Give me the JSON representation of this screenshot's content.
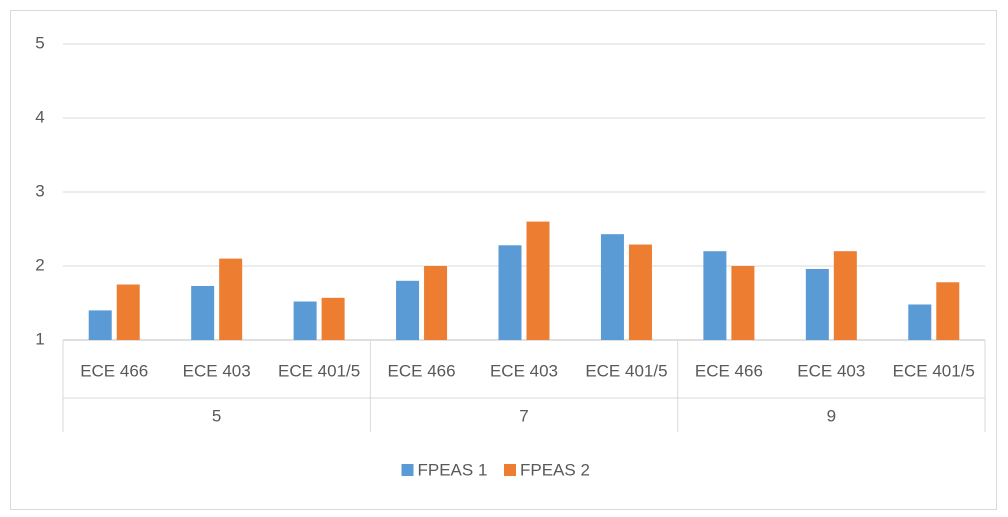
{
  "chart_data": {
    "type": "bar",
    "categories": [
      "ECE 466",
      "ECE 403",
      "ECE 401/5",
      "ECE 466",
      "ECE 403",
      "ECE 401/5",
      "ECE 466",
      "ECE 403",
      "ECE 401/5"
    ],
    "groups": [
      "5",
      "7",
      "9"
    ],
    "series": [
      {
        "name": "FPEAS 1",
        "color": "#5b9bd5",
        "values": [
          1.4,
          1.73,
          1.52,
          1.8,
          2.28,
          2.43,
          2.2,
          1.96,
          1.48
        ]
      },
      {
        "name": "FPEAS 2",
        "color": "#ed7d31",
        "values": [
          1.75,
          2.1,
          1.57,
          2.0,
          2.6,
          2.29,
          2.0,
          2.2,
          1.78
        ]
      }
    ],
    "ylim": [
      1,
      5
    ],
    "yticks": [
      1,
      2,
      3,
      4,
      5
    ],
    "grid": true,
    "legend": "bottom"
  }
}
